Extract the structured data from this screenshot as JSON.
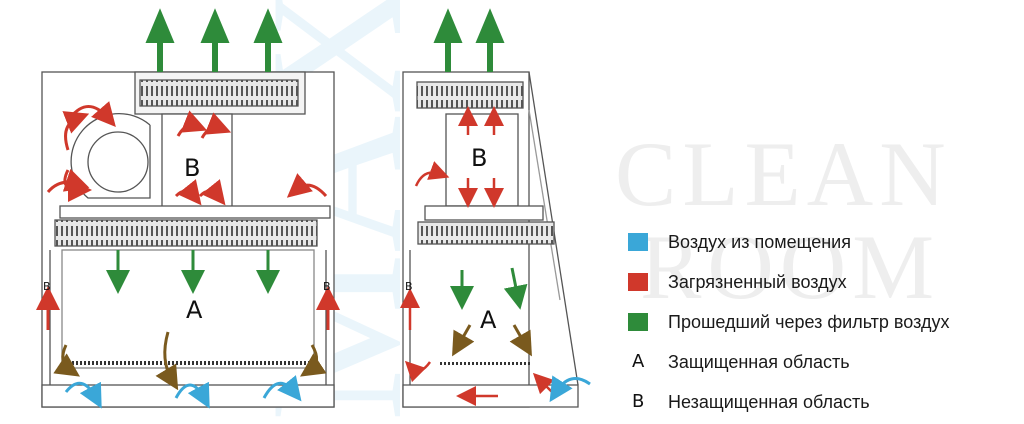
{
  "watermark": {
    "brand_left": "MAX",
    "brand_right_top": "Clean",
    "brand_right_bottom": "Room"
  },
  "diagram": {
    "zone_a": "A",
    "zone_b": "B"
  },
  "legend": [
    {
      "kind": "swatch",
      "color": "#3aa7d8",
      "label": "Воздух из помещения"
    },
    {
      "kind": "swatch",
      "color": "#d0382b",
      "label": "Загрязненный воздух"
    },
    {
      "kind": "swatch",
      "color": "#2e8b3a",
      "label": "Прошедший через фильтр воздух"
    },
    {
      "kind": "letter",
      "letter": "A",
      "label": "Защищенная область"
    },
    {
      "kind": "letter",
      "letter": "B",
      "label": "Незащищенная область"
    }
  ],
  "colors": {
    "room_air": "#3aa7d8",
    "contaminated": "#d0382b",
    "filtered": "#2e8b3a",
    "mixed": "#7a5a1e"
  }
}
